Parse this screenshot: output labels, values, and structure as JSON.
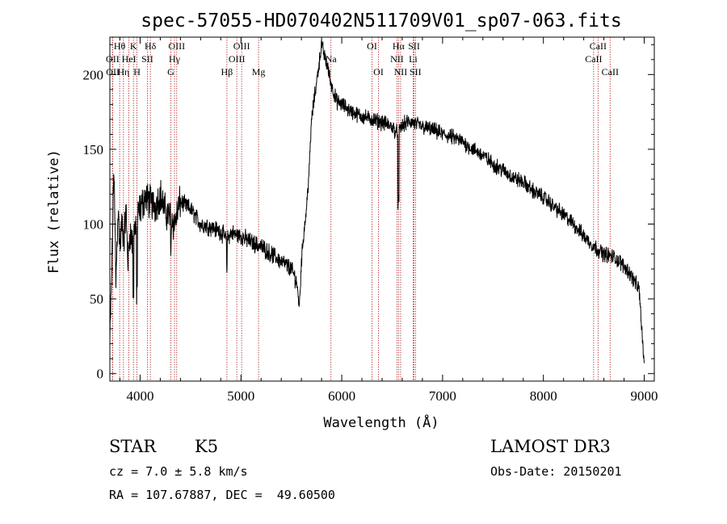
{
  "chart_data": {
    "type": "line",
    "title": "spec-57055-HD070402N511709V01_sp07-063.fits",
    "xlabel": "Wavelength (Å)",
    "ylabel": "Flux (relative)",
    "xlim": [
      3700,
      9100
    ],
    "ylim": [
      -5,
      225
    ],
    "x_ticks": [
      4000,
      5000,
      6000,
      7000,
      8000,
      9000
    ],
    "x_tick_labels": [
      "4000",
      "5000",
      "6000",
      "7000",
      "8000",
      "9000"
    ],
    "y_ticks": [
      0,
      50,
      100,
      150,
      200
    ],
    "y_tick_labels": [
      "0",
      "50",
      "100",
      "150",
      "200"
    ],
    "series": [
      {
        "name": "flux",
        "color": "#000000",
        "x": [
          3700,
          3720,
          3740,
          3760,
          3780,
          3800,
          3820,
          3840,
          3860,
          3880,
          3900,
          3920,
          3940,
          3960,
          3980,
          4000,
          4050,
          4100,
          4150,
          4200,
          4250,
          4300,
          4340,
          4400,
          4500,
          4600,
          4700,
          4800,
          4860,
          4900,
          5000,
          5100,
          5200,
          5300,
          5400,
          5500,
          5550,
          5580,
          5600,
          5620,
          5650,
          5680,
          5700,
          5720,
          5750,
          5780,
          5800,
          5830,
          5860,
          5890,
          5920,
          5950,
          6000,
          6100,
          6200,
          6300,
          6400,
          6500,
          6560,
          6600,
          6650,
          6700,
          6800,
          6900,
          7000,
          7100,
          7200,
          7300,
          7400,
          7500,
          7600,
          7700,
          7800,
          7900,
          8000,
          8100,
          8200,
          8300,
          8400,
          8500,
          8600,
          8700,
          8800,
          8850,
          8900,
          8950,
          9000
        ],
        "y": [
          20,
          70,
          140,
          60,
          110,
          85,
          100,
          90,
          110,
          75,
          95,
          88,
          100,
          92,
          106,
          110,
          118,
          115,
          112,
          120,
          108,
          105,
          100,
          115,
          110,
          100,
          98,
          95,
          90,
          94,
          92,
          88,
          85,
          80,
          75,
          70,
          62,
          45,
          75,
          92,
          110,
          140,
          170,
          180,
          195,
          210,
          220,
          212,
          205,
          195,
          188,
          182,
          180,
          175,
          172,
          170,
          168,
          165,
          160,
          166,
          168,
          168,
          165,
          163,
          160,
          158,
          155,
          150,
          146,
          140,
          136,
          131,
          128,
          122,
          118,
          112,
          106,
          100,
          92,
          85,
          80,
          78,
          72,
          68,
          62,
          56,
          5
        ]
      }
    ],
    "spectral_lines": [
      {
        "label": "Hθ",
        "wavelength": 3797,
        "row": 0
      },
      {
        "label": "OII",
        "wavelength": 3727,
        "row": 1
      },
      {
        "label": "OII",
        "wavelength": 3729,
        "row": 2
      },
      {
        "label": "Hη",
        "wavelength": 3835,
        "row": 2
      },
      {
        "label": "K",
        "wavelength": 3934,
        "row": 0
      },
      {
        "label": "HeI",
        "wavelength": 3889,
        "row": 1
      },
      {
        "label": "H",
        "wavelength": 3969,
        "row": 2
      },
      {
        "label": "SII",
        "wavelength": 4072,
        "row": 1
      },
      {
        "label": "Hδ",
        "wavelength": 4102,
        "row": 0
      },
      {
        "label": "OIII",
        "wavelength": 4363,
        "row": 0
      },
      {
        "label": "Hγ",
        "wavelength": 4341,
        "row": 1
      },
      {
        "label": "G",
        "wavelength": 4305,
        "row": 2
      },
      {
        "label": "Hβ",
        "wavelength": 4861,
        "row": 2
      },
      {
        "label": "OIII",
        "wavelength": 5007,
        "row": 0
      },
      {
        "label": "OIII",
        "wavelength": 4959,
        "row": 1
      },
      {
        "label": "Mg",
        "wavelength": 5175,
        "row": 2
      },
      {
        "label": "Na",
        "wavelength": 5893,
        "row": 1
      },
      {
        "label": "OI",
        "wavelength": 6300,
        "row": 0
      },
      {
        "label": "OI",
        "wavelength": 6364,
        "row": 2
      },
      {
        "label": "Hα",
        "wavelength": 6563,
        "row": 0
      },
      {
        "label": "NII",
        "wavelength": 6548,
        "row": 1
      },
      {
        "label": "NII",
        "wavelength": 6584,
        "row": 2
      },
      {
        "label": "SII",
        "wavelength": 6717,
        "row": 0
      },
      {
        "label": "Li",
        "wavelength": 6708,
        "row": 1
      },
      {
        "label": "SII",
        "wavelength": 6731,
        "row": 2
      },
      {
        "label": "CaII",
        "wavelength": 8542,
        "row": 0
      },
      {
        "label": "CaII",
        "wavelength": 8498,
        "row": 1
      },
      {
        "label": "CaII",
        "wavelength": 8662,
        "row": 2
      }
    ],
    "line_color": "#b22222"
  },
  "info": {
    "object_class": "STAR",
    "subclass": "K5",
    "survey": "LAMOST DR3",
    "redshift_text": "cz = 7.0 ± 5.8 km/s",
    "obs_date_text": "Obs-Date: 20150201",
    "coords_text": "RA = 107.67887, DEC =  49.60500"
  }
}
